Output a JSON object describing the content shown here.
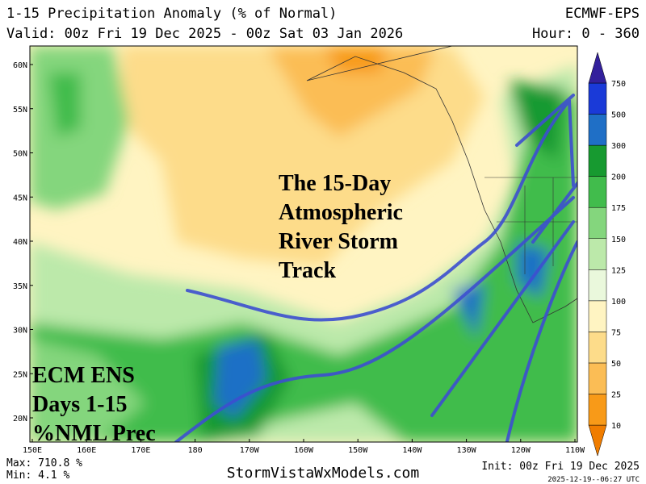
{
  "header": {
    "title": "1-15 Precipitation Anomaly (% of Normal)",
    "model": "ECMWF-EPS",
    "valid": "Valid: 00z Fri 19 Dec 2025 - 00z Sat 03 Jan 2026",
    "hours": "Hour: 0 - 360"
  },
  "map": {
    "lat_labels": [
      "60N",
      "55N",
      "50N",
      "45N",
      "40N",
      "35N",
      "30N",
      "25N",
      "20N"
    ],
    "lon_labels": [
      "150E",
      "160E",
      "170E",
      "180",
      "170W",
      "160W",
      "150W",
      "140W",
      "130W",
      "120W",
      "110W"
    ]
  },
  "colorbar": {
    "levels": [
      10,
      25,
      50,
      75,
      100,
      125,
      150,
      175,
      200,
      300,
      500,
      750
    ],
    "colors": [
      "#f07d00",
      "#f89a18",
      "#fbbd55",
      "#fddc8a",
      "#fff4c2",
      "#eaf8dc",
      "#bce9aa",
      "#84d67d",
      "#41bc4c",
      "#179a30",
      "#1f6fc6",
      "#1a3ad8",
      "#33209c"
    ]
  },
  "annotations": {
    "storm_track": [
      "The 15-Day",
      "Atmospheric",
      "River Storm",
      "Track"
    ],
    "label": [
      "ECM ENS",
      "Days 1-15",
      "%NML Prec"
    ]
  },
  "footer": {
    "max": "Max: 710.8 %",
    "min": "Min: 4.1 %",
    "site": "StormVistaWxModels.com",
    "init": "Init: 00z Fri 19 Dec 2025",
    "timestamp": "2025-12-19--06:27 UTC"
  }
}
